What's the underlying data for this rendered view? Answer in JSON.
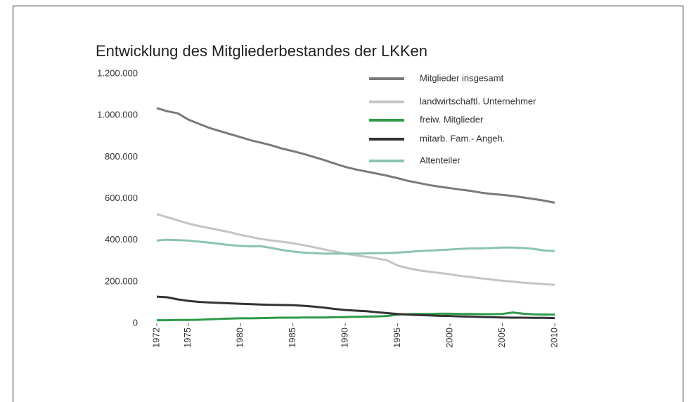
{
  "chart_data": {
    "type": "line",
    "title": "Entwicklung des Mitgliederbestandes der LKKen",
    "x": [
      1972,
      1973,
      1974,
      1975,
      1976,
      1977,
      1978,
      1979,
      1980,
      1981,
      1982,
      1983,
      1984,
      1985,
      1986,
      1987,
      1988,
      1989,
      1990,
      1991,
      1992,
      1993,
      1994,
      1995,
      1996,
      1997,
      1998,
      1999,
      2000,
      2001,
      2002,
      2003,
      2004,
      2005,
      2006,
      2007,
      2008,
      2009,
      2010
    ],
    "series": [
      {
        "name": "Mitglieder insgesamt",
        "color": "#7a7a7a",
        "values": [
          1035000,
          1020000,
          1010000,
          980000,
          960000,
          940000,
          925000,
          910000,
          895000,
          880000,
          868000,
          855000,
          840000,
          828000,
          815000,
          800000,
          785000,
          768000,
          752000,
          740000,
          730000,
          720000,
          710000,
          698000,
          685000,
          675000,
          665000,
          657000,
          650000,
          643000,
          637000,
          628000,
          622000,
          618000,
          612000,
          605000,
          598000,
          590000,
          580000
        ]
      },
      {
        "name": "landwirtschaftl. Unternehmer",
        "color": "#c4c4c4",
        "values": [
          525000,
          510000,
          495000,
          480000,
          468000,
          458000,
          448000,
          438000,
          425000,
          415000,
          405000,
          398000,
          392000,
          385000,
          376000,
          366000,
          355000,
          345000,
          335000,
          327000,
          320000,
          312000,
          303000,
          278000,
          265000,
          255000,
          248000,
          242000,
          236000,
          228000,
          222000,
          216000,
          210000,
          205000,
          200000,
          195000,
          192000,
          188000,
          185000
        ]
      },
      {
        "name": "freiw. Mitglieder",
        "color": "#2e9a48",
        "values": [
          15000,
          15000,
          16000,
          16000,
          17000,
          19000,
          21000,
          23000,
          24000,
          24000,
          25000,
          26000,
          27000,
          27000,
          28000,
          28000,
          28000,
          29000,
          30000,
          31000,
          32000,
          33000,
          35000,
          42000,
          44000,
          45000,
          45000,
          46000,
          46000,
          45000,
          45000,
          44000,
          44000,
          45000,
          52000,
          46000,
          43000,
          42000,
          42000
        ]
      },
      {
        "name": "mitarb. Fam.- Angeh.",
        "color": "#333333",
        "values": [
          128000,
          125000,
          115000,
          108000,
          103000,
          100000,
          98000,
          96000,
          94000,
          92000,
          90000,
          89000,
          88000,
          87000,
          84000,
          80000,
          75000,
          69000,
          64000,
          61000,
          58000,
          53000,
          49000,
          45000,
          42000,
          40000,
          38000,
          36000,
          35000,
          33000,
          32000,
          30000,
          29000,
          28000,
          27000,
          27000,
          26000,
          26000,
          25000
        ]
      },
      {
        "name": "Altenteiler",
        "color": "#8cc4ae",
        "values": [
          398000,
          402000,
          400000,
          398000,
          393000,
          388000,
          382000,
          376000,
          372000,
          370000,
          370000,
          362000,
          352000,
          345000,
          340000,
          337000,
          335000,
          335000,
          335000,
          335000,
          336000,
          337000,
          338000,
          340000,
          343000,
          347000,
          350000,
          352000,
          355000,
          358000,
          360000,
          360000,
          362000,
          364000,
          364000,
          362000,
          358000,
          350000,
          348000
        ]
      }
    ],
    "xlim": [
      1972,
      2010
    ],
    "xticks": [
      1972,
      1975,
      1980,
      1985,
      1990,
      1995,
      2000,
      2005,
      2010
    ],
    "ylim": [
      0,
      1200000
    ],
    "yticks": [
      0,
      {
        "value": 200000,
        "label": "200.000"
      },
      {
        "value": 400000,
        "label": "400.000"
      },
      {
        "value": 600000,
        "label": "600.000"
      },
      {
        "value": 800000,
        "label": "800.000"
      },
      {
        "value": 1000000,
        "label": "1.000.000"
      },
      {
        "value": 1200000,
        "label": "1.200.000"
      }
    ],
    "grid": false,
    "legend": "upper right"
  }
}
